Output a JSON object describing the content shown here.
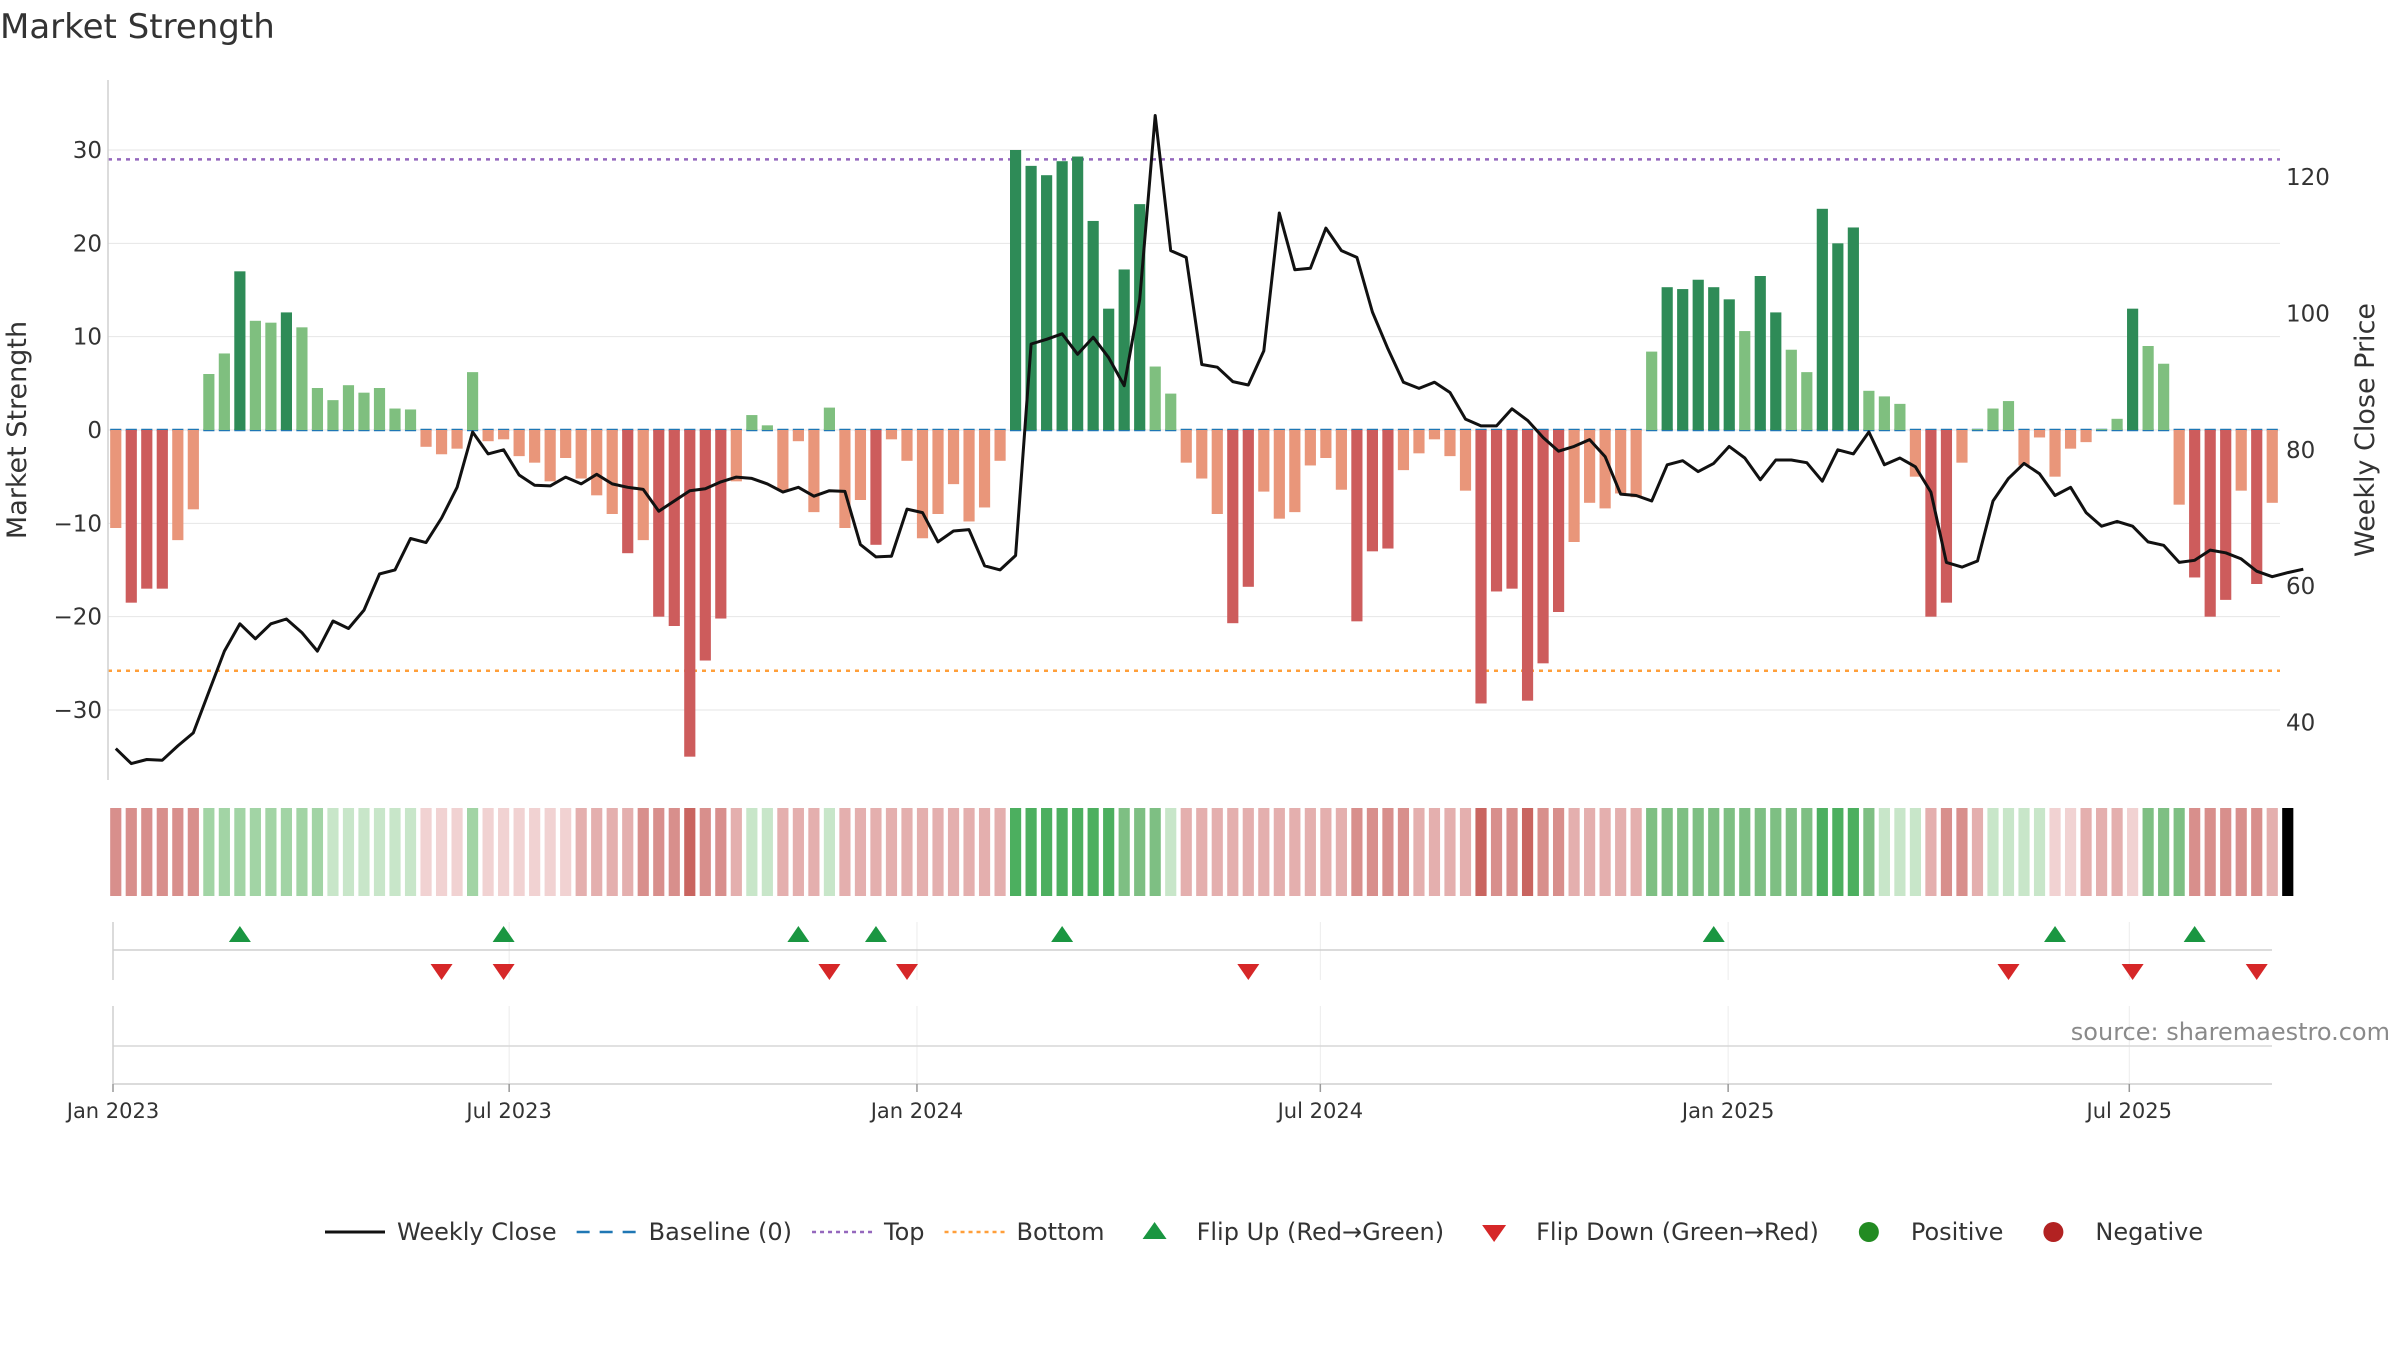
{
  "title": "Market Strength",
  "source": "source: sharemaestro.com",
  "chart_data": {
    "type": "bar",
    "title": "Market Strength",
    "start_week": "2023-01-01",
    "week_count": 140,
    "left_axis": {
      "label": "Market Strength",
      "range": [
        -37.5,
        37.5
      ],
      "ticks": [
        30,
        20,
        10,
        0,
        -10,
        -20,
        -30
      ]
    },
    "right_axis": {
      "label": "Weekly Close Price",
      "range": [
        31.6,
        134.2
      ],
      "ticks": [
        120,
        100,
        80,
        60,
        40
      ]
    },
    "x_ticks": [
      "Jan 2023",
      "Jul 2023",
      "Jan 2024",
      "Jul 2024",
      "Jan 2025",
      "Jul 2025"
    ],
    "x_tick_dates": [
      "2023-01-01",
      "2023-07-01",
      "2024-01-01",
      "2024-07-01",
      "2025-01-01",
      "2025-07-01"
    ],
    "reference_lines": {
      "top": 29,
      "bottom": -25.8,
      "baseline": 0
    },
    "grid": true,
    "legend_position": "bottom",
    "series": [
      {
        "name": "Market Strength",
        "kind": "bar",
        "values": [
          -10.5,
          -18.5,
          -17,
          -17,
          -11.8,
          -8.5,
          6,
          8.2,
          17,
          11.7,
          11.5,
          12.6,
          11,
          4.5,
          3.2,
          4.8,
          4,
          4.5,
          2.3,
          2.2,
          -1.8,
          -2.6,
          -2,
          6.2,
          -1.2,
          -1,
          -2.8,
          -3.5,
          -5.5,
          -3,
          -5.2,
          -7,
          -9,
          -13.2,
          -11.8,
          -20,
          -21,
          -35,
          -24.7,
          -20.2,
          -5.5,
          1.6,
          0.5,
          -6.5,
          -1.2,
          -8.8,
          2.4,
          -10.5,
          -7.5,
          -12.3,
          -1,
          -3.3,
          -11.6,
          -9,
          -5.8,
          -9.8,
          -8.3,
          -3.3,
          30,
          28.3,
          27.3,
          28.8,
          29.3,
          22.4,
          13,
          17.2,
          24.2,
          6.8,
          3.9,
          -3.5,
          -5.2,
          -9,
          -20.7,
          -16.8,
          -6.6,
          -9.5,
          -8.8,
          -3.8,
          -3,
          -6.4,
          -20.5,
          -13,
          -12.7,
          -4.3,
          -2.5,
          -1,
          -2.8,
          -6.5,
          -29.3,
          -17.3,
          -17,
          -29,
          -25,
          -19.5,
          -12,
          -7.8,
          -8.4,
          -6.8,
          -7.2,
          8.4,
          15.3,
          15.1,
          16.1,
          15.3,
          14,
          10.6,
          16.5,
          12.6,
          8.6,
          6.2,
          23.7,
          20,
          21.7,
          4.2,
          3.6,
          2.8,
          -5,
          -20,
          -18.5,
          -3.5,
          0.1,
          2.3,
          3.1,
          -3.8,
          -0.8,
          -5,
          -2,
          -1.3,
          0.1,
          1.2,
          13,
          9,
          7.1,
          -8,
          -15.8,
          -20,
          -18.2,
          -6.5,
          -16.5,
          -7.8
        ]
      },
      {
        "name": "Weekly Close",
        "kind": "line",
        "values": [
          36.2,
          34,
          34.6,
          34.5,
          36.6,
          38.5,
          44.5,
          50.5,
          54.5,
          52.3,
          54.5,
          55.2,
          53.2,
          50.5,
          54.9,
          53.8,
          56.5,
          61.8,
          62.4,
          67,
          66.4,
          70,
          74.5,
          82.6,
          79.4,
          80,
          76.3,
          74.8,
          74.7,
          76,
          75,
          76.4,
          75,
          74.5,
          74.2,
          71,
          72.5,
          74,
          74.3,
          75.3,
          76,
          75.8,
          75,
          73.8,
          74.5,
          73.2,
          74,
          73.9,
          66.1,
          64.3,
          64.4,
          71.3,
          70.8,
          66.5,
          68.1,
          68.3,
          63,
          62.4,
          64.5,
          95.5,
          96.2,
          97,
          94,
          96.5,
          93.5,
          89.4,
          102,
          129,
          109.2,
          108.2,
          92.5,
          92.1,
          90,
          89.5,
          94.5,
          114.7,
          106.4,
          106.6,
          112.5,
          109.2,
          108.2,
          100.2,
          94.8,
          89.9,
          89,
          89.9,
          88.4,
          84.5,
          83.5,
          83.5,
          86,
          84.3,
          81.8,
          79.8,
          80.5,
          81.5,
          79,
          73.5,
          73.3,
          72.5,
          77.8,
          78.4,
          76.8,
          78,
          80.5,
          78.8,
          75.6,
          78.5,
          78.5,
          78.1,
          75.4,
          80,
          79.4,
          82.6,
          77.8,
          78.8,
          77.5,
          73.8,
          63.5,
          62.8,
          63.7,
          72.5,
          75.8,
          78,
          76.5,
          73.3,
          74.5,
          70.8,
          68.8,
          69.5,
          68.8,
          66.5,
          66,
          63.5,
          63.8,
          65.3,
          64.9,
          64,
          62.2,
          61.4,
          62,
          62.5
        ]
      }
    ],
    "strip": {
      "name": "Strength band",
      "direction": [
        "r",
        "r",
        "r",
        "r",
        "r",
        "r",
        "g",
        "g",
        "g",
        "g",
        "g",
        "g",
        "g",
        "g",
        "g",
        "g",
        "g",
        "g",
        "g",
        "g",
        "r",
        "r",
        "r",
        "g",
        "r",
        "r",
        "r",
        "r",
        "r",
        "r",
        "r",
        "r",
        "r",
        "r",
        "r",
        "r",
        "r",
        "r",
        "r",
        "r",
        "r",
        "g",
        "g",
        "r",
        "r",
        "r",
        "g",
        "r",
        "r",
        "r",
        "r",
        "r",
        "r",
        "r",
        "r",
        "r",
        "r",
        "r",
        "g",
        "g",
        "g",
        "g",
        "g",
        "g",
        "g",
        "g",
        "g",
        "g",
        "g",
        "r",
        "r",
        "r",
        "r",
        "r",
        "r",
        "r",
        "r",
        "r",
        "r",
        "r",
        "r",
        "r",
        "r",
        "r",
        "r",
        "r",
        "r",
        "r",
        "r",
        "r",
        "r",
        "r",
        "r",
        "r",
        "r",
        "r",
        "r",
        "r",
        "r",
        "g",
        "g",
        "g",
        "g",
        "g",
        "g",
        "g",
        "g",
        "g",
        "g",
        "g",
        "g",
        "g",
        "g",
        "g",
        "g",
        "g",
        "g",
        "r",
        "r",
        "r",
        "r",
        "g",
        "g",
        "g",
        "g",
        "r",
        "r",
        "r",
        "r",
        "r",
        "r",
        "g",
        "g",
        "g",
        "r",
        "r",
        "r",
        "r",
        "r",
        "r",
        "r"
      ],
      "level": [
        3,
        3,
        3,
        3,
        3,
        3,
        2,
        2,
        2,
        2,
        2,
        2,
        2,
        2,
        1,
        1,
        1,
        1,
        1,
        1,
        1,
        1,
        1,
        2,
        1,
        1,
        1,
        1,
        1,
        1,
        2,
        2,
        2,
        2,
        3,
        3,
        3,
        4,
        3,
        3,
        2,
        1,
        1,
        2,
        2,
        2,
        1,
        2,
        2,
        2,
        2,
        2,
        2,
        2,
        2,
        2,
        2,
        2,
        4,
        4,
        4,
        4,
        4,
        4,
        4,
        3,
        3,
        3,
        1,
        2,
        2,
        2,
        2,
        2,
        2,
        2,
        2,
        2,
        2,
        2,
        3,
        3,
        3,
        3,
        2,
        2,
        2,
        2,
        4,
        3,
        3,
        4,
        3,
        3,
        2,
        2,
        2,
        2,
        2,
        3,
        3,
        3,
        3,
        3,
        3,
        3,
        3,
        3,
        3,
        3,
        4,
        4,
        4,
        3,
        1,
        1,
        1,
        2,
        3,
        3,
        2,
        1,
        1,
        1,
        1,
        1,
        1,
        2,
        2,
        2,
        1,
        3,
        3,
        3,
        3,
        3,
        3,
        3,
        3,
        2
      ]
    },
    "flip_up_weeks": [
      8,
      25,
      44,
      49,
      61,
      103,
      125,
      134
    ],
    "flip_down_weeks": [
      21,
      25,
      46,
      51,
      73,
      122,
      130,
      138
    ],
    "colors": {
      "bar_green_strong": "#2e8b57",
      "bar_green_weak": "#7fbf7f",
      "bar_red_strong": "#cd5c5c",
      "bar_red_weak": "#e9967a",
      "line": "#111111",
      "baseline": "#1f77b4",
      "top": "#9467bd",
      "bottom": "#ff9f3a",
      "flip_up": "#1a9641",
      "flip_down": "#d62728",
      "positive": "#228b22",
      "negative": "#b22222"
    },
    "legend": [
      {
        "label": "Weekly Close",
        "symbol": "line"
      },
      {
        "label": "Baseline (0)",
        "symbol": "dash"
      },
      {
        "label": "Top",
        "symbol": "dot"
      },
      {
        "label": "Bottom",
        "symbol": "dot"
      },
      {
        "label": "Flip Up (Red→Green)",
        "symbol": "triangle-up"
      },
      {
        "label": "Flip Down (Green→Red)",
        "symbol": "triangle-down"
      },
      {
        "label": "Positive",
        "symbol": "circle"
      },
      {
        "label": "Negative",
        "symbol": "circle"
      }
    ]
  }
}
